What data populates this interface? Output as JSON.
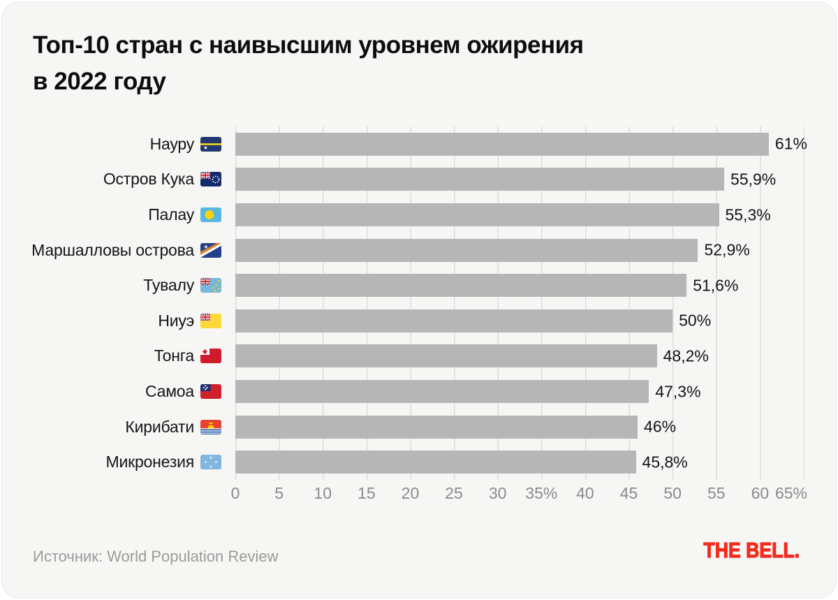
{
  "header": {
    "title_lines": [
      "Топ-10 стран с наивысшим уровнем ожирения",
      "в 2022 году"
    ]
  },
  "chart_data": {
    "type": "bar",
    "orientation": "horizontal",
    "title": "Топ-10 стран с наивысшим уровнем ожирения в 2022 году",
    "unit": "%",
    "xlim": [
      0,
      65
    ],
    "grid": "vertical",
    "x_ticks": [
      "0",
      "5",
      "10",
      "15",
      "20",
      "25",
      "30",
      "35%",
      "40",
      "45",
      "50",
      "55",
      "60",
      "65%"
    ],
    "x_tick_values": [
      0,
      5,
      10,
      15,
      20,
      25,
      30,
      35,
      40,
      45,
      50,
      55,
      60,
      65
    ],
    "rows": [
      {
        "label": "Науру",
        "flag_icon": "nauru-flag-icon",
        "value": 61,
        "value_label": "61%"
      },
      {
        "label": "Остров Кука",
        "flag_icon": "cook-islands-flag-icon",
        "value": 55.9,
        "value_label": "55,9%"
      },
      {
        "label": "Палау",
        "flag_icon": "palau-flag-icon",
        "value": 55.3,
        "value_label": "55,3%"
      },
      {
        "label": "Маршалловы острова",
        "flag_icon": "marshall-islands-flag-icon",
        "value": 52.9,
        "value_label": "52,9%"
      },
      {
        "label": "Тувалу",
        "flag_icon": "tuvalu-flag-icon",
        "value": 51.6,
        "value_label": "51,6%"
      },
      {
        "label": "Ниуэ",
        "flag_icon": "niue-flag-icon",
        "value": 50,
        "value_label": "50%"
      },
      {
        "label": "Тонга",
        "flag_icon": "tonga-flag-icon",
        "value": 48.2,
        "value_label": "48,2%"
      },
      {
        "label": "Самоа",
        "flag_icon": "samoa-flag-icon",
        "value": 47.3,
        "value_label": "47,3%"
      },
      {
        "label": "Кирибати",
        "flag_icon": "kiribati-flag-icon",
        "value": 46,
        "value_label": "46%"
      },
      {
        "label": "Микронезия",
        "flag_icon": "micronesia-flag-icon",
        "value": 45.8,
        "value_label": "45,8%"
      }
    ]
  },
  "footer": {
    "source": "Источник: World Population Review",
    "logo": "THE BELL."
  },
  "colors": {
    "background": "#f6f6f4",
    "bar": "#b6b6b6",
    "grid": "#dcdcda",
    "axis_text": "#8b8b8b",
    "label_text": "#141414",
    "logo_red": "#f42a1d",
    "muted_text": "#9b9b9a"
  }
}
